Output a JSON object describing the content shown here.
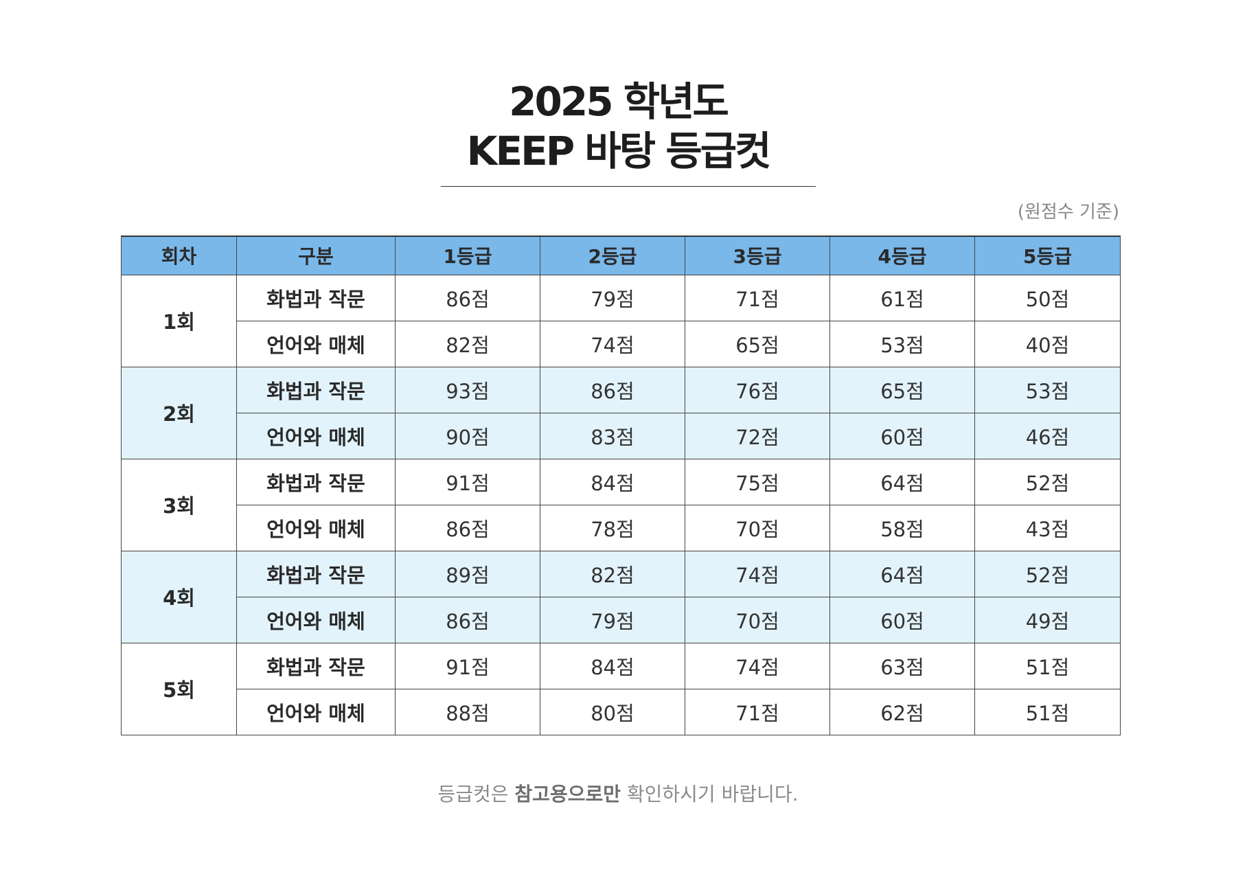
{
  "title": {
    "line1": "2025 학년도",
    "line2": "KEEP 바탕 등급컷"
  },
  "note": "(원점수 기준)",
  "table": {
    "headers": [
      "회차",
      "구분",
      "1등급",
      "2등급",
      "3등급",
      "4등급",
      "5등급"
    ],
    "rounds": [
      {
        "label": "1회",
        "rows": [
          {
            "subject": "화법과 작문",
            "cuts": [
              "86점",
              "79점",
              "71점",
              "61점",
              "50점"
            ]
          },
          {
            "subject": "언어와 매체",
            "cuts": [
              "82점",
              "74점",
              "65점",
              "53점",
              "40점"
            ]
          }
        ]
      },
      {
        "label": "2회",
        "rows": [
          {
            "subject": "화법과 작문",
            "cuts": [
              "93점",
              "86점",
              "76점",
              "65점",
              "53점"
            ]
          },
          {
            "subject": "언어와 매체",
            "cuts": [
              "90점",
              "83점",
              "72점",
              "60점",
              "46점"
            ]
          }
        ]
      },
      {
        "label": "3회",
        "rows": [
          {
            "subject": "화법과 작문",
            "cuts": [
              "91점",
              "84점",
              "75점",
              "64점",
              "52점"
            ]
          },
          {
            "subject": "언어와 매체",
            "cuts": [
              "86점",
              "78점",
              "70점",
              "58점",
              "43점"
            ]
          }
        ]
      },
      {
        "label": "4회",
        "rows": [
          {
            "subject": "화법과 작문",
            "cuts": [
              "89점",
              "82점",
              "74점",
              "64점",
              "52점"
            ]
          },
          {
            "subject": "언어와 매체",
            "cuts": [
              "86점",
              "79점",
              "70점",
              "60점",
              "49점"
            ]
          }
        ]
      },
      {
        "label": "5회",
        "rows": [
          {
            "subject": "화법과 작문",
            "cuts": [
              "91점",
              "84점",
              "74점",
              "63점",
              "51점"
            ]
          },
          {
            "subject": "언어와 매체",
            "cuts": [
              "88점",
              "80점",
              "71점",
              "62점",
              "51점"
            ]
          }
        ]
      }
    ]
  },
  "footer": {
    "before": "등급컷은 ",
    "emphasis": "참고용으로만",
    "after": " 확인하시기 바랍니다."
  },
  "colors": {
    "header_bg": "#7ab8ea",
    "shaded_row_bg": "#e3f3fb",
    "border": "#444444"
  }
}
